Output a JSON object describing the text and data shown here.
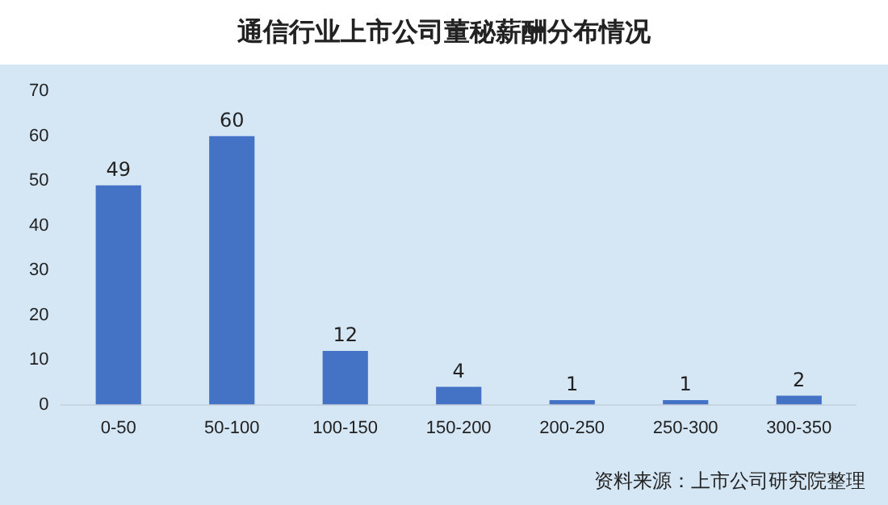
{
  "chart_data": {
    "type": "bar",
    "title": "通信行业上市公司董秘薪酬分布情况",
    "categories": [
      "0-50",
      "50-100",
      "100-150",
      "150-200",
      "200-250",
      "250-300",
      "300-350"
    ],
    "values": [
      49,
      60,
      12,
      4,
      1,
      1,
      2
    ],
    "color": "#4472c4",
    "ylim": [
      0,
      70
    ],
    "yticks": [
      0,
      10,
      20,
      30,
      40,
      50,
      60,
      70
    ],
    "grid": false,
    "data_labels": true,
    "annotations": [
      "资料来源：上市公司研究院整理"
    ]
  }
}
